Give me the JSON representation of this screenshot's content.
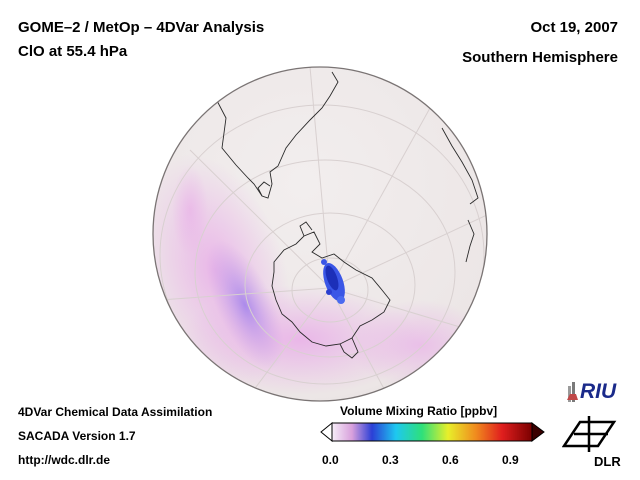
{
  "header": {
    "title_line1": "GOME–2 / MetOp – 4DVar Analysis",
    "title_line2": "ClO at 55.4 hPa",
    "date": "Oct 19, 2007",
    "region": "Southern Hemisphere"
  },
  "footer": {
    "line1": "4DVar Chemical Data Assimilation",
    "line2": "SACADA Version 1.7",
    "line3": "http://wdc.dlr.de"
  },
  "colorbar": {
    "title": "Volume Mixing Ratio [ppbv]",
    "ticks": [
      "0.0",
      "0.3",
      "0.6",
      "0.9"
    ],
    "range": [
      0.0,
      1.0
    ],
    "colors": [
      "#f0e6f4",
      "#d59ad8",
      "#2b3fd6",
      "#1ec8f0",
      "#2ee07a",
      "#e8ef2a",
      "#f08a1e",
      "#e01e1e",
      "#7a0000"
    ]
  },
  "logos": {
    "riu": "RIU",
    "dlr": "DLR"
  },
  "map": {
    "projection": "orthographic",
    "hemisphere": "Southern"
  }
}
